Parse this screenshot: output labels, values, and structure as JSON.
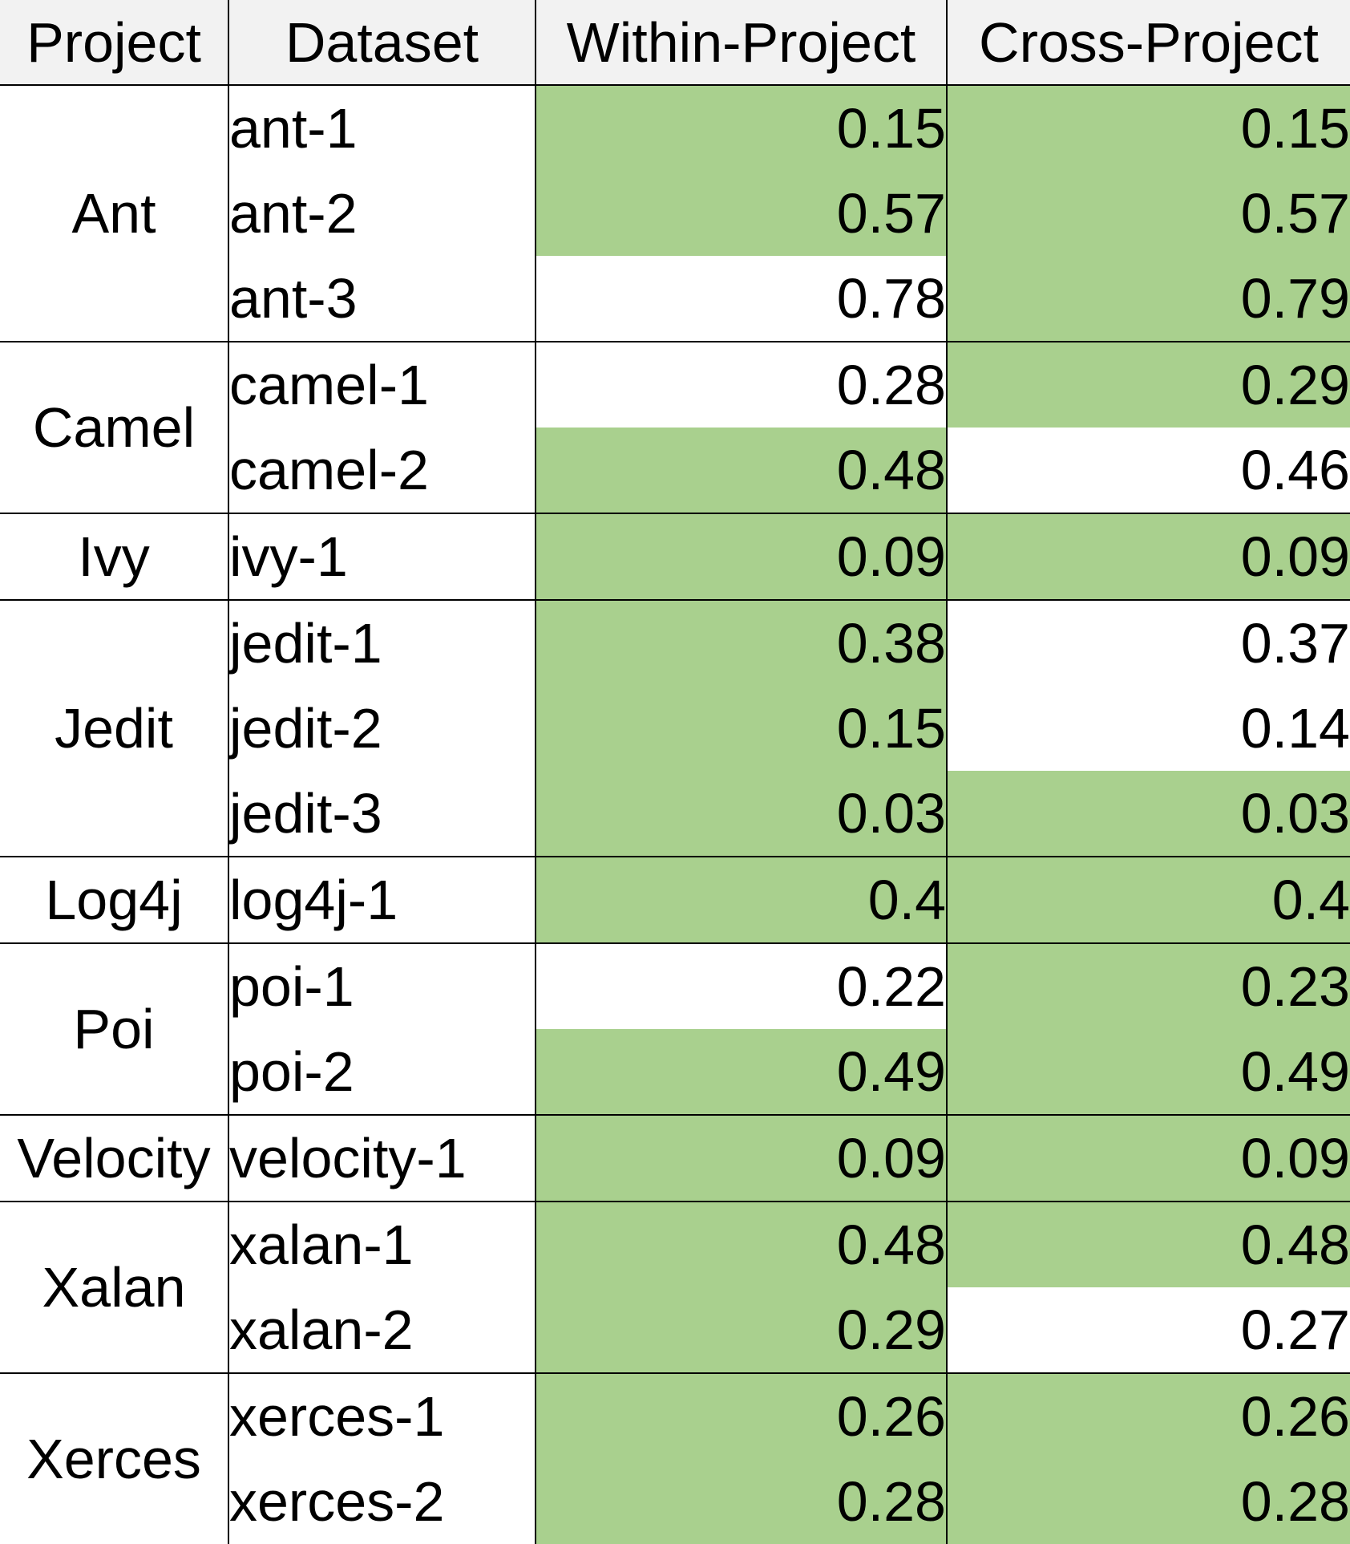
{
  "chart_data": {
    "type": "table",
    "columns": [
      "Project",
      "Dataset",
      "Within-Project",
      "Cross-Project"
    ],
    "highlight_color": "#a9d08e",
    "groups": [
      {
        "project": "Ant",
        "rows": [
          {
            "dataset": "ant-1",
            "within": "0.15",
            "cross": "0.15",
            "within_highlight": true,
            "cross_highlight": true
          },
          {
            "dataset": "ant-2",
            "within": "0.57",
            "cross": "0.57",
            "within_highlight": true,
            "cross_highlight": true
          },
          {
            "dataset": "ant-3",
            "within": "0.78",
            "cross": "0.79",
            "within_highlight": false,
            "cross_highlight": true
          }
        ]
      },
      {
        "project": "Camel",
        "rows": [
          {
            "dataset": "camel-1",
            "within": "0.28",
            "cross": "0.29",
            "within_highlight": false,
            "cross_highlight": true
          },
          {
            "dataset": "camel-2",
            "within": "0.48",
            "cross": "0.46",
            "within_highlight": true,
            "cross_highlight": false
          }
        ]
      },
      {
        "project": "Ivy",
        "rows": [
          {
            "dataset": "ivy-1",
            "within": "0.09",
            "cross": "0.09",
            "within_highlight": true,
            "cross_highlight": true
          }
        ]
      },
      {
        "project": "Jedit",
        "rows": [
          {
            "dataset": "jedit-1",
            "within": "0.38",
            "cross": "0.37",
            "within_highlight": true,
            "cross_highlight": false
          },
          {
            "dataset": "jedit-2",
            "within": "0.15",
            "cross": "0.14",
            "within_highlight": true,
            "cross_highlight": false
          },
          {
            "dataset": "jedit-3",
            "within": "0.03",
            "cross": "0.03",
            "within_highlight": true,
            "cross_highlight": true
          }
        ]
      },
      {
        "project": "Log4j",
        "rows": [
          {
            "dataset": "log4j-1",
            "within": "0.4",
            "cross": "0.4",
            "within_highlight": true,
            "cross_highlight": true
          }
        ]
      },
      {
        "project": "Poi",
        "rows": [
          {
            "dataset": "poi-1",
            "within": "0.22",
            "cross": "0.23",
            "within_highlight": false,
            "cross_highlight": true
          },
          {
            "dataset": "poi-2",
            "within": "0.49",
            "cross": "0.49",
            "within_highlight": true,
            "cross_highlight": true
          }
        ]
      },
      {
        "project": "Velocity",
        "rows": [
          {
            "dataset": "velocity-1",
            "within": "0.09",
            "cross": "0.09",
            "within_highlight": true,
            "cross_highlight": true
          }
        ]
      },
      {
        "project": "Xalan",
        "rows": [
          {
            "dataset": "xalan-1",
            "within": "0.48",
            "cross": "0.48",
            "within_highlight": true,
            "cross_highlight": true
          },
          {
            "dataset": "xalan-2",
            "within": "0.29",
            "cross": "0.27",
            "within_highlight": true,
            "cross_highlight": false
          }
        ]
      },
      {
        "project": "Xerces",
        "rows": [
          {
            "dataset": "xerces-1",
            "within": "0.26",
            "cross": "0.26",
            "within_highlight": true,
            "cross_highlight": true
          },
          {
            "dataset": "xerces-2",
            "within": "0.28",
            "cross": "0.28",
            "within_highlight": true,
            "cross_highlight": true
          }
        ]
      }
    ]
  }
}
